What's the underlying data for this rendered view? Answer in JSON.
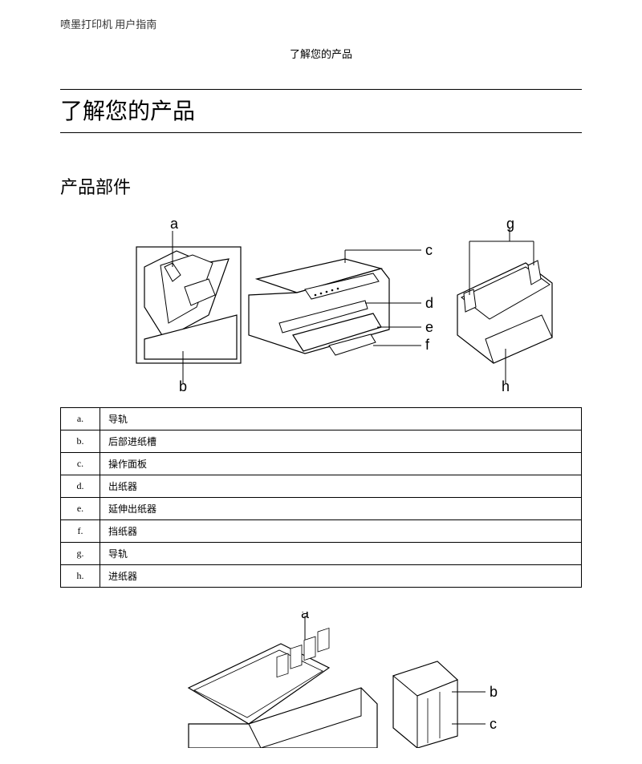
{
  "header": {
    "doc_title": "喷墨打印机  用户指南",
    "breadcrumb": "了解您的产品"
  },
  "page_title": "了解您的产品",
  "section_title": "产品部件",
  "diagram1": {
    "labels": {
      "a": "a",
      "b": "b",
      "c": "c",
      "d": "d",
      "e": "e",
      "f": "f",
      "g": "g",
      "h": "h"
    },
    "stroke": "#000000",
    "fill_light": "#ffffff",
    "fill_gray": "#e8e8e8",
    "label_fontsize": 18
  },
  "parts_table": {
    "rows": [
      {
        "key": "a.",
        "value": "导轨"
      },
      {
        "key": "b.",
        "value": "后部进纸槽"
      },
      {
        "key": "c.",
        "value": "操作面板"
      },
      {
        "key": "d.",
        "value": "出纸器"
      },
      {
        "key": "e.",
        "value": "延伸出纸器"
      },
      {
        "key": "f.",
        "value": "挡纸器"
      },
      {
        "key": "g.",
        "value": "导轨"
      },
      {
        "key": "h.",
        "value": "进纸器"
      }
    ]
  },
  "diagram2": {
    "labels": {
      "a": "a",
      "b": "b",
      "c": "c"
    },
    "stroke": "#000000",
    "fill_light": "#ffffff",
    "label_fontsize": 18
  }
}
